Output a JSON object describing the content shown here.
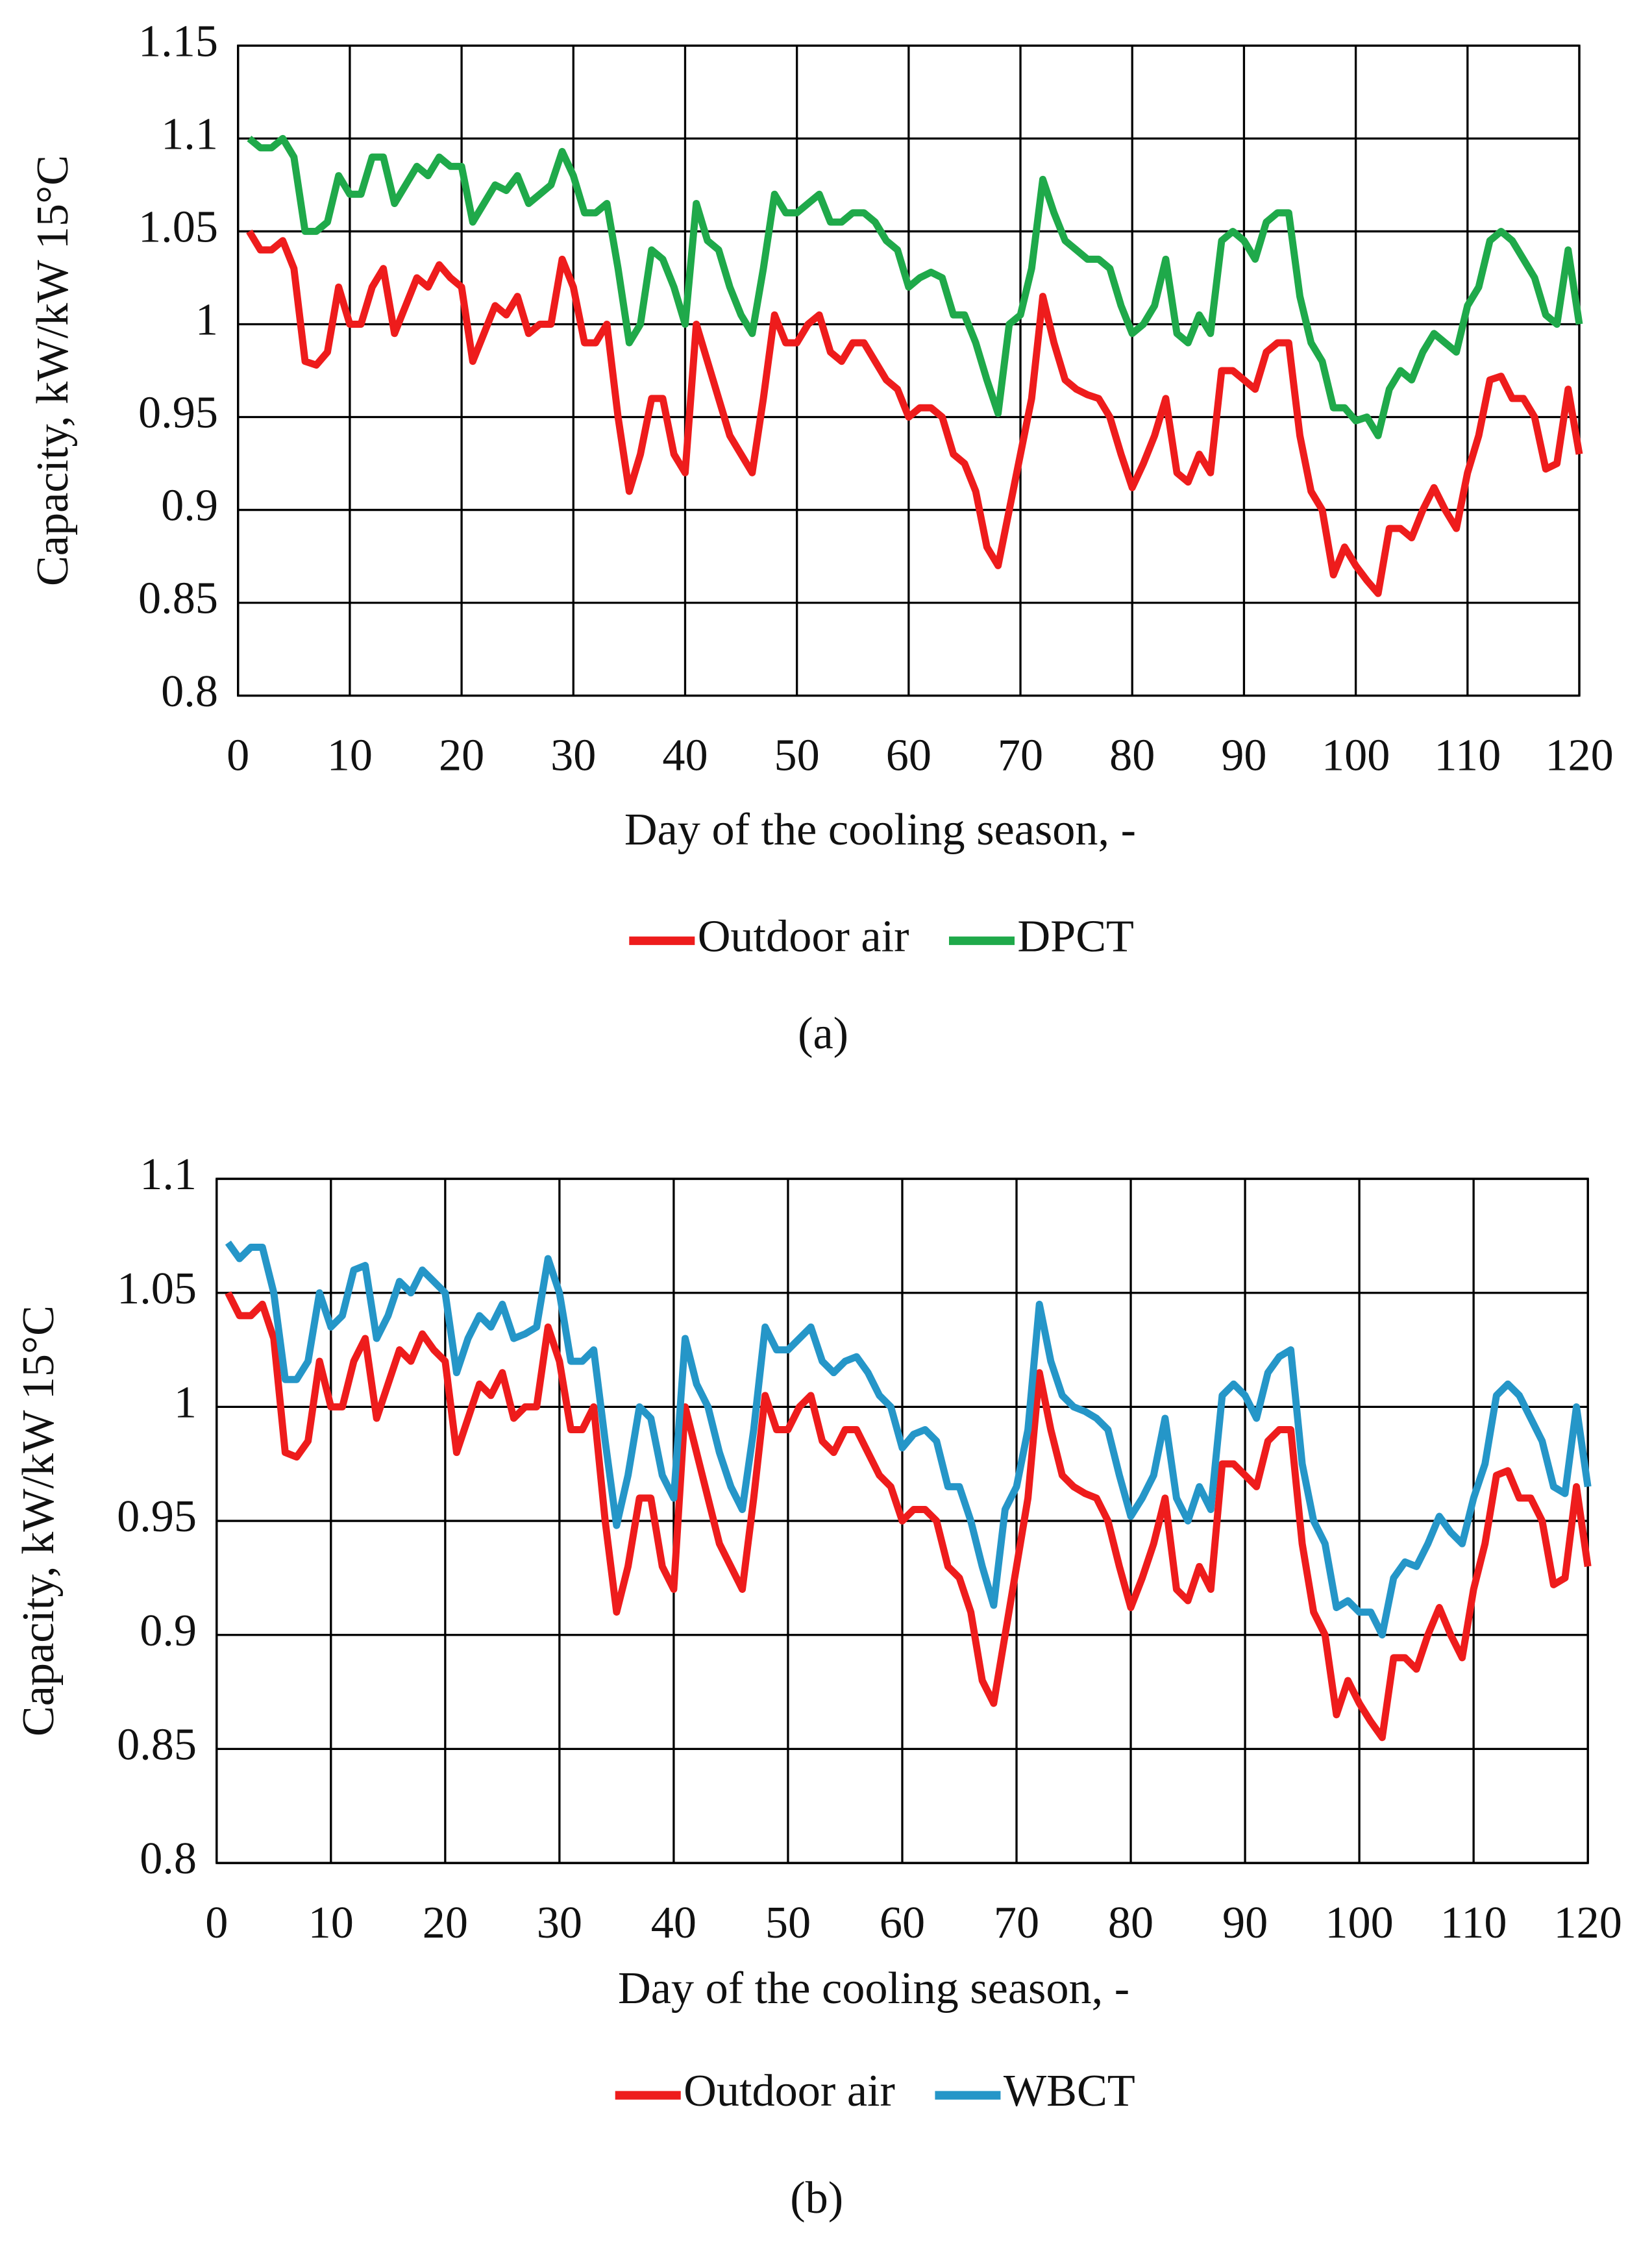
{
  "chart_data": [
    {
      "type": "line",
      "caption": "(a)",
      "xlabel": "Day of the cooling season, -",
      "ylabel": "Capacity, kW/kW 15°C",
      "x": [
        1,
        2,
        3,
        4,
        5,
        6,
        7,
        8,
        9,
        10,
        11,
        12,
        13,
        14,
        15,
        16,
        17,
        18,
        19,
        20,
        21,
        22,
        23,
        24,
        25,
        26,
        27,
        28,
        29,
        30,
        31,
        32,
        33,
        34,
        35,
        36,
        37,
        38,
        39,
        40,
        41,
        42,
        43,
        44,
        45,
        46,
        47,
        48,
        49,
        50,
        51,
        52,
        53,
        54,
        55,
        56,
        57,
        58,
        59,
        60,
        61,
        62,
        63,
        64,
        65,
        66,
        67,
        68,
        69,
        70,
        71,
        72,
        73,
        74,
        75,
        76,
        77,
        78,
        79,
        80,
        81,
        82,
        83,
        84,
        85,
        86,
        87,
        88,
        89,
        90,
        91,
        92,
        93,
        94,
        95,
        96,
        97,
        98,
        99,
        100,
        101,
        102,
        103,
        104,
        105,
        106,
        107,
        108,
        109,
        110,
        111,
        112,
        113,
        114,
        115,
        116,
        117,
        118,
        119,
        120
      ],
      "xlim": [
        0,
        120
      ],
      "xticks": [
        0,
        10,
        20,
        30,
        40,
        50,
        60,
        70,
        80,
        90,
        100,
        110,
        120
      ],
      "ylim": [
        0.8,
        1.15
      ],
      "yticks": [
        0.8,
        0.85,
        0.9,
        0.95,
        1,
        1.05,
        1.1,
        1.15
      ],
      "grid": true,
      "series": [
        {
          "name": "Outdoor air",
          "color": "#ee1c1c",
          "values": [
            1.05,
            1.04,
            1.04,
            1.045,
            1.03,
            0.98,
            0.978,
            0.985,
            1.02,
            1.0,
            1.0,
            1.02,
            1.03,
            0.995,
            1.01,
            1.025,
            1.02,
            1.032,
            1.025,
            1.02,
            0.98,
            0.995,
            1.01,
            1.005,
            1.015,
            0.995,
            1.0,
            1.0,
            1.035,
            1.02,
            0.99,
            0.99,
            1.0,
            0.95,
            0.91,
            0.93,
            0.96,
            0.96,
            0.93,
            0.92,
            1.0,
            0.98,
            0.96,
            0.94,
            0.93,
            0.92,
            0.96,
            1.005,
            0.99,
            0.99,
            1.0,
            1.005,
            0.985,
            0.98,
            0.99,
            0.99,
            0.98,
            0.97,
            0.965,
            0.95,
            0.955,
            0.955,
            0.95,
            0.93,
            0.925,
            0.91,
            0.88,
            0.87,
            0.9,
            0.93,
            0.96,
            1.015,
            0.99,
            0.97,
            0.965,
            0.962,
            0.96,
            0.95,
            0.93,
            0.912,
            0.925,
            0.94,
            0.96,
            0.92,
            0.915,
            0.93,
            0.92,
            0.975,
            0.975,
            0.97,
            0.965,
            0.985,
            0.99,
            0.99,
            0.94,
            0.91,
            0.9,
            0.865,
            0.88,
            0.87,
            0.862,
            0.855,
            0.89,
            0.89,
            0.885,
            0.9,
            0.912,
            0.9,
            0.89,
            0.92,
            0.94,
            0.97,
            0.972,
            0.96,
            0.96,
            0.95,
            0.922,
            0.925,
            0.965,
            0.93
          ]
        },
        {
          "name": "DPCT",
          "color": "#1fa94a",
          "values": [
            1.1,
            1.095,
            1.095,
            1.1,
            1.09,
            1.05,
            1.05,
            1.055,
            1.08,
            1.07,
            1.07,
            1.09,
            1.09,
            1.065,
            1.075,
            1.085,
            1.08,
            1.09,
            1.085,
            1.085,
            1.055,
            1.065,
            1.075,
            1.072,
            1.08,
            1.065,
            1.07,
            1.075,
            1.093,
            1.08,
            1.06,
            1.06,
            1.065,
            1.03,
            0.99,
            1.0,
            1.04,
            1.035,
            1.02,
            1.0,
            1.065,
            1.045,
            1.04,
            1.02,
            1.005,
            0.995,
            1.03,
            1.07,
            1.06,
            1.06,
            1.065,
            1.07,
            1.055,
            1.055,
            1.06,
            1.06,
            1.055,
            1.045,
            1.04,
            1.02,
            1.025,
            1.028,
            1.025,
            1.005,
            1.005,
            0.99,
            0.97,
            0.952,
            1.0,
            1.005,
            1.03,
            1.078,
            1.06,
            1.045,
            1.04,
            1.035,
            1.035,
            1.03,
            1.01,
            0.995,
            1.0,
            1.01,
            1.035,
            0.995,
            0.99,
            1.005,
            0.995,
            1.045,
            1.05,
            1.045,
            1.035,
            1.055,
            1.06,
            1.06,
            1.015,
            0.99,
            0.98,
            0.955,
            0.955,
            0.948,
            0.95,
            0.94,
            0.965,
            0.975,
            0.97,
            0.985,
            0.995,
            0.99,
            0.985,
            1.01,
            1.02,
            1.045,
            1.05,
            1.045,
            1.035,
            1.025,
            1.005,
            1.0,
            1.04,
            1.0
          ]
        }
      ]
    },
    {
      "type": "line",
      "caption": "(b)",
      "xlabel": "Day of the cooling season, -",
      "ylabel": "Capacity, kW/kW 15°C",
      "x": [
        1,
        2,
        3,
        4,
        5,
        6,
        7,
        8,
        9,
        10,
        11,
        12,
        13,
        14,
        15,
        16,
        17,
        18,
        19,
        20,
        21,
        22,
        23,
        24,
        25,
        26,
        27,
        28,
        29,
        30,
        31,
        32,
        33,
        34,
        35,
        36,
        37,
        38,
        39,
        40,
        41,
        42,
        43,
        44,
        45,
        46,
        47,
        48,
        49,
        50,
        51,
        52,
        53,
        54,
        55,
        56,
        57,
        58,
        59,
        60,
        61,
        62,
        63,
        64,
        65,
        66,
        67,
        68,
        69,
        70,
        71,
        72,
        73,
        74,
        75,
        76,
        77,
        78,
        79,
        80,
        81,
        82,
        83,
        84,
        85,
        86,
        87,
        88,
        89,
        90,
        91,
        92,
        93,
        94,
        95,
        96,
        97,
        98,
        99,
        100,
        101,
        102,
        103,
        104,
        105,
        106,
        107,
        108,
        109,
        110,
        111,
        112,
        113,
        114,
        115,
        116,
        117,
        118,
        119,
        120
      ],
      "xlim": [
        0,
        120
      ],
      "xticks": [
        0,
        10,
        20,
        30,
        40,
        50,
        60,
        70,
        80,
        90,
        100,
        110,
        120
      ],
      "ylim": [
        0.8,
        1.1
      ],
      "yticks": [
        0.8,
        0.85,
        0.9,
        0.95,
        1,
        1.05,
        1.1
      ],
      "grid": true,
      "series": [
        {
          "name": "Outdoor air",
          "color": "#ee1c1c",
          "values": [
            1.05,
            1.04,
            1.04,
            1.045,
            1.03,
            0.98,
            0.978,
            0.985,
            1.02,
            1.0,
            1.0,
            1.02,
            1.03,
            0.995,
            1.01,
            1.025,
            1.02,
            1.032,
            1.025,
            1.02,
            0.98,
            0.995,
            1.01,
            1.005,
            1.015,
            0.995,
            1.0,
            1.0,
            1.035,
            1.02,
            0.99,
            0.99,
            1.0,
            0.95,
            0.91,
            0.93,
            0.96,
            0.96,
            0.93,
            0.92,
            1.0,
            0.98,
            0.96,
            0.94,
            0.93,
            0.92,
            0.96,
            1.005,
            0.99,
            0.99,
            1.0,
            1.005,
            0.985,
            0.98,
            0.99,
            0.99,
            0.98,
            0.97,
            0.965,
            0.95,
            0.955,
            0.955,
            0.95,
            0.93,
            0.925,
            0.91,
            0.88,
            0.87,
            0.9,
            0.93,
            0.96,
            1.015,
            0.99,
            0.97,
            0.965,
            0.962,
            0.96,
            0.95,
            0.93,
            0.912,
            0.925,
            0.94,
            0.96,
            0.92,
            0.915,
            0.93,
            0.92,
            0.975,
            0.975,
            0.97,
            0.965,
            0.985,
            0.99,
            0.99,
            0.94,
            0.91,
            0.9,
            0.865,
            0.88,
            0.87,
            0.862,
            0.855,
            0.89,
            0.89,
            0.885,
            0.9,
            0.912,
            0.9,
            0.89,
            0.92,
            0.94,
            0.97,
            0.972,
            0.96,
            0.96,
            0.95,
            0.922,
            0.925,
            0.965,
            0.93
          ]
        },
        {
          "name": "WBCT",
          "color": "#2596c8",
          "values": [
            1.072,
            1.065,
            1.07,
            1.07,
            1.05,
            1.012,
            1.012,
            1.02,
            1.05,
            1.035,
            1.04,
            1.06,
            1.062,
            1.03,
            1.04,
            1.055,
            1.05,
            1.06,
            1.055,
            1.05,
            1.015,
            1.03,
            1.04,
            1.035,
            1.045,
            1.03,
            1.032,
            1.035,
            1.065,
            1.05,
            1.02,
            1.02,
            1.025,
            0.985,
            0.948,
            0.97,
            1.0,
            0.995,
            0.97,
            0.96,
            1.03,
            1.01,
            1.0,
            0.98,
            0.965,
            0.955,
            0.99,
            1.035,
            1.025,
            1.025,
            1.03,
            1.035,
            1.02,
            1.015,
            1.02,
            1.022,
            1.015,
            1.005,
            1.0,
            0.982,
            0.988,
            0.99,
            0.985,
            0.965,
            0.965,
            0.95,
            0.93,
            0.913,
            0.955,
            0.965,
            0.99,
            1.045,
            1.02,
            1.005,
            1.0,
            0.998,
            0.995,
            0.99,
            0.97,
            0.952,
            0.96,
            0.97,
            0.995,
            0.96,
            0.95,
            0.965,
            0.955,
            1.005,
            1.01,
            1.005,
            0.995,
            1.015,
            1.022,
            1.025,
            0.975,
            0.95,
            0.94,
            0.912,
            0.915,
            0.91,
            0.91,
            0.9,
            0.925,
            0.932,
            0.93,
            0.94,
            0.952,
            0.945,
            0.94,
            0.96,
            0.975,
            1.005,
            1.01,
            1.005,
            0.995,
            0.985,
            0.965,
            0.962,
            1.0,
            0.965
          ]
        }
      ]
    }
  ]
}
